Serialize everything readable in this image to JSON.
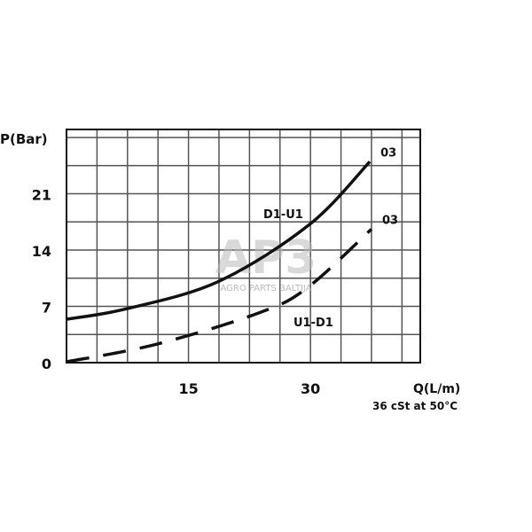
{
  "chart_data": {
    "type": "line",
    "title": "",
    "xlabel": "Q(L/m)",
    "ylabel": "P(Bar)",
    "note": "36 cSt at 50°C",
    "xlim": [
      0,
      43.5
    ],
    "ylim": [
      0,
      29
    ],
    "xticks": [
      15,
      30
    ],
    "yticks": [
      0,
      7,
      14,
      21
    ],
    "grid": true,
    "series": [
      {
        "name": "D1-U1",
        "end_label": "03",
        "style": "solid",
        "x": [
          0,
          7.4,
          18.7,
          29.9,
          37.3
        ],
        "y": [
          5.4,
          6.7,
          10.1,
          17.2,
          25
        ]
      },
      {
        "name": "U1-D1",
        "end_label": "03",
        "style": "dashed",
        "x": [
          0,
          11.1,
          23.7,
          29.6,
          37.5
        ],
        "y": [
          0.1,
          2.3,
          6.2,
          9.3,
          16.6
        ]
      }
    ]
  },
  "watermark": {
    "logo": "AP3",
    "text": "AGRO PARTS BALTIJA"
  }
}
